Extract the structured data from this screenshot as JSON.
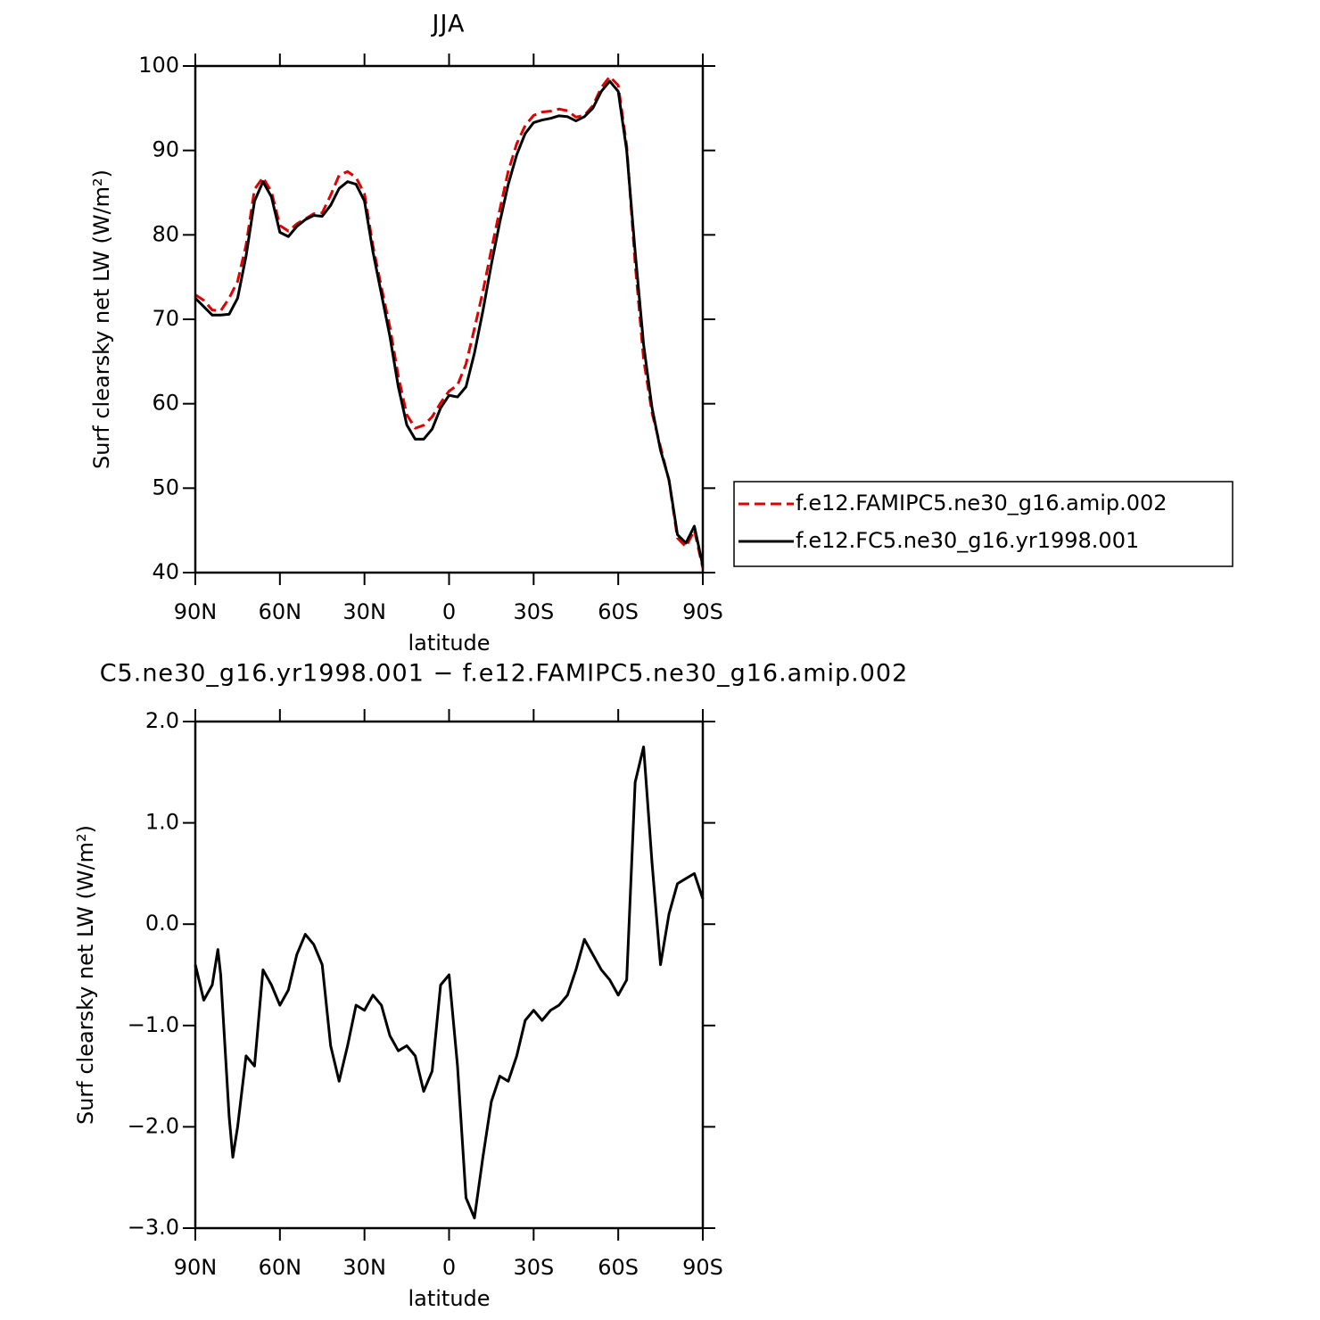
{
  "chart_data": [
    {
      "type": "line",
      "title": "JJA",
      "xlabel": "latitude",
      "ylabel": "Surf clearsky net LW (W/m²)",
      "x": [
        90,
        87,
        84,
        81,
        78,
        75,
        72,
        69,
        66,
        63,
        60,
        57,
        54,
        51,
        48,
        45,
        42,
        39,
        36,
        33,
        30,
        27,
        24,
        21,
        18,
        15,
        12,
        9,
        6,
        3,
        0,
        -3,
        -6,
        -9,
        -12,
        -15,
        -18,
        -21,
        -24,
        -27,
        -30,
        -33,
        -36,
        -39,
        -42,
        -45,
        -48,
        -51,
        -54,
        -57,
        -60,
        -63,
        -66,
        -69,
        -72,
        -75,
        -78,
        -81,
        -84,
        -87,
        -90
      ],
      "xlim": [
        90,
        -90
      ],
      "xticks": [
        {
          "value": 90,
          "label": "90N"
        },
        {
          "value": 60,
          "label": "60N"
        },
        {
          "value": 30,
          "label": "30N"
        },
        0,
        {
          "value": -30,
          "label": "30S"
        },
        {
          "value": -60,
          "label": "60S"
        },
        {
          "value": -90,
          "label": "90S"
        }
      ],
      "ylim": [
        40,
        100
      ],
      "yticks": [
        40,
        50,
        60,
        70,
        80,
        90,
        100
      ],
      "legend": "right",
      "series": [
        {
          "name": "f.e12.FAMIPC5.ne30_g16.amip.002",
          "color": "#e00000",
          "style": "dashed",
          "values": [
            72.9,
            72.25,
            71.1,
            71.0,
            72.5,
            74.5,
            78.8,
            85.4,
            86.8,
            85.1,
            81.1,
            80.45,
            81.3,
            81.9,
            82.5,
            82.6,
            84.7,
            87.05,
            87.5,
            86.8,
            84.85,
            78.7,
            73.8,
            69.1,
            63.25,
            58.7,
            57.1,
            57.45,
            58.45,
            60.1,
            61.5,
            62.2,
            64.7,
            68.9,
            73.3,
            78.25,
            83.0,
            87.55,
            90.8,
            92.95,
            94.15,
            94.55,
            94.65,
            94.9,
            94.7,
            93.95,
            94.15,
            95.3,
            97.45,
            98.75,
            97.7,
            90.55,
            76.6,
            65.25,
            58.9,
            54.9,
            50.9,
            44.1,
            43.05,
            45.0,
            40.55
          ]
        },
        {
          "name": "f.e12.FC5.ne30_g16.yr1998.001",
          "color": "#000000",
          "style": "solid",
          "values": [
            72.5,
            71.5,
            70.5,
            70.5,
            70.6,
            72.5,
            77.5,
            84.0,
            86.3,
            84.5,
            80.3,
            79.8,
            81.0,
            81.8,
            82.3,
            82.2,
            83.5,
            85.5,
            86.3,
            86.0,
            84.0,
            78.0,
            73.0,
            68.0,
            62.0,
            57.5,
            55.8,
            55.8,
            57.0,
            59.5,
            61.0,
            60.8,
            62.0,
            66.0,
            71.0,
            76.5,
            81.5,
            86.0,
            89.5,
            92.0,
            93.3,
            93.6,
            93.8,
            94.1,
            94.0,
            93.5,
            94.0,
            95.0,
            97.0,
            98.2,
            97.0,
            90.0,
            78.0,
            67.0,
            59.5,
            54.5,
            51.0,
            44.5,
            43.5,
            45.5,
            40.8
          ]
        }
      ]
    },
    {
      "type": "line",
      "title": "C5.ne30_g16.yr1998.001 − f.e12.FAMIPC5.ne30_g16.amip.002",
      "xlabel": "latitude",
      "ylabel": "Surf clearsky net LW (W/m²)",
      "x": [
        90,
        87,
        84,
        82,
        81,
        78,
        76.7,
        75,
        72,
        69,
        66,
        63,
        60,
        57,
        54,
        51,
        48,
        45,
        42,
        39,
        36,
        33,
        30,
        27,
        24,
        21,
        18,
        15,
        12,
        9,
        6,
        3,
        0,
        -3,
        -6,
        -9,
        -12,
        -15,
        -18,
        -21,
        -24,
        -27,
        -30,
        -33,
        -36,
        -39,
        -42,
        -45,
        -48,
        -51,
        -54,
        -57,
        -60,
        -63,
        -66,
        -69,
        -72,
        -75,
        -78,
        -81,
        -84,
        -87,
        -90
      ],
      "xlim": [
        90,
        -90
      ],
      "xticks": [
        {
          "value": 90,
          "label": "90N"
        },
        {
          "value": 60,
          "label": "60N"
        },
        {
          "value": 30,
          "label": "30N"
        },
        0,
        {
          "value": -30,
          "label": "30S"
        },
        {
          "value": -60,
          "label": "60S"
        },
        {
          "value": -90,
          "label": "90S"
        }
      ],
      "ylim": [
        -3,
        2
      ],
      "yticks": [
        {
          "value": -3,
          "label": "−3.0"
        },
        {
          "value": -2,
          "label": "−2.0"
        },
        {
          "value": -1,
          "label": "−1.0"
        },
        {
          "value": 0,
          "label": "0.0"
        },
        {
          "value": 1,
          "label": "1.0"
        },
        {
          "value": 2,
          "label": "2.0"
        }
      ],
      "series": [
        {
          "name": null,
          "color": "#000000",
          "style": "solid",
          "values": [
            -0.4,
            -0.75,
            -0.6,
            -0.25,
            -0.5,
            -1.9,
            -2.3,
            -2.0,
            -1.3,
            -1.4,
            -0.45,
            -0.6,
            -0.8,
            -0.65,
            -0.3,
            -0.1,
            -0.2,
            -0.4,
            -1.2,
            -1.55,
            -1.2,
            -0.8,
            -0.85,
            -0.7,
            -0.8,
            -1.1,
            -1.25,
            -1.2,
            -1.3,
            -1.65,
            -1.45,
            -0.6,
            -0.5,
            -1.4,
            -2.7,
            -2.9,
            -2.3,
            -1.75,
            -1.5,
            -1.55,
            -1.3,
            -0.95,
            -0.85,
            -0.95,
            -0.85,
            -0.8,
            -0.7,
            -0.45,
            -0.15,
            -0.3,
            -0.45,
            -0.55,
            -0.7,
            -0.55,
            1.4,
            1.75,
            0.6,
            -0.4,
            0.1,
            0.4,
            0.45,
            0.5,
            0.25
          ]
        }
      ]
    }
  ]
}
